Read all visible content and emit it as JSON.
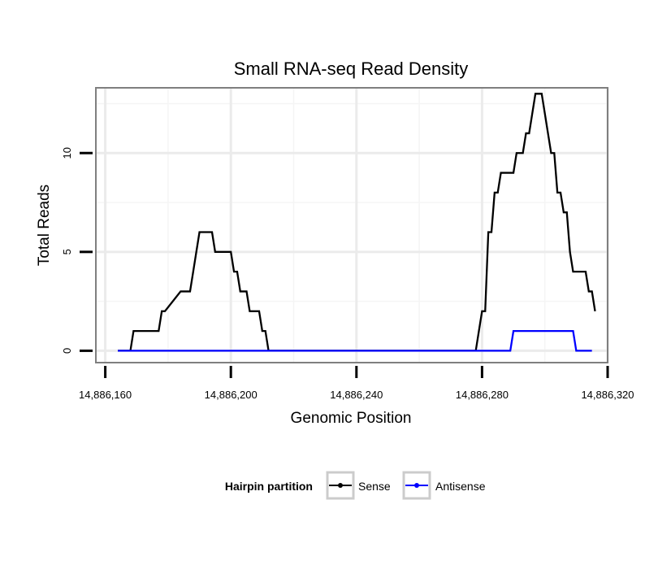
{
  "chart_data": {
    "type": "line",
    "title": "Small RNA-seq Read Density",
    "xlabel": "Genomic Position",
    "ylabel": "Total Reads",
    "xlim": [
      14886157,
      14886320
    ],
    "ylim": [
      -0.6,
      13.3
    ],
    "x_ticks": [
      14886160,
      14886200,
      14886240,
      14886280,
      14886320
    ],
    "x_tick_labels": [
      "14,886,160",
      "14,886,200",
      "14,886,240",
      "14,886,280",
      "14,886,320"
    ],
    "y_ticks": [
      0,
      5,
      10
    ],
    "y_tick_labels": [
      "0",
      "5",
      "10"
    ],
    "y_minor_gridlines": [
      2.5,
      7.5,
      12.5
    ],
    "x_minor_gridlines": [
      14886180,
      14886220,
      14886260,
      14886300
    ],
    "grid": true,
    "legend": {
      "title": "Hairpin partition",
      "position": "bottom",
      "entries": [
        {
          "label": "Sense",
          "color": "#000000"
        },
        {
          "label": "Antisense",
          "color": "#0000ff"
        }
      ]
    },
    "series": [
      {
        "name": "Sense",
        "color": "#000000",
        "x": [
          14886164,
          14886167,
          14886168,
          14886169,
          14886176,
          14886177,
          14886178,
          14886179,
          14886184,
          14886185,
          14886186,
          14886187,
          14886188,
          14886189,
          14886190,
          14886193,
          14886194,
          14886195,
          14886196,
          14886197,
          14886198,
          14886199,
          14886200,
          14886201,
          14886202,
          14886203,
          14886204,
          14886205,
          14886206,
          14886207,
          14886208,
          14886209,
          14886210,
          14886211,
          14886212,
          14886220,
          14886230,
          14886240,
          14886250,
          14886260,
          14886270,
          14886278,
          14886279,
          14886280,
          14886281,
          14886282,
          14886283,
          14886284,
          14886285,
          14886286,
          14886287,
          14886288,
          14886289,
          14886290,
          14886291,
          14886292,
          14886293,
          14886294,
          14886295,
          14886296,
          14886297,
          14886298,
          14886299,
          14886300,
          14886301,
          14886302,
          14886303,
          14886304,
          14886305,
          14886306,
          14886307,
          14886308,
          14886309,
          14886310,
          14886311,
          14886312,
          14886313,
          14886314,
          14886315,
          14886316
        ],
        "values": [
          0,
          0,
          0,
          1,
          1,
          1,
          2,
          2,
          3,
          3,
          3,
          3,
          4,
          5,
          6,
          6,
          6,
          5,
          5,
          5,
          5,
          5,
          5,
          4,
          4,
          3,
          3,
          3,
          2,
          2,
          2,
          2,
          1,
          1,
          0,
          0,
          0,
          0,
          0,
          0,
          0,
          0,
          1,
          2,
          2,
          6,
          6,
          8,
          8,
          9,
          9,
          9,
          9,
          9,
          10,
          10,
          10,
          11,
          11,
          12,
          13,
          13,
          13,
          12,
          11,
          10,
          10,
          8,
          8,
          7,
          7,
          5,
          4,
          4,
          4,
          4,
          4,
          3,
          3,
          2
        ]
      },
      {
        "name": "Antisense",
        "color": "#0000ff",
        "x": [
          14886164,
          14886200,
          14886250,
          14886288,
          14886289,
          14886290,
          14886300,
          14886308,
          14886309,
          14886310,
          14886315
        ],
        "values": [
          0,
          0,
          0,
          0,
          0,
          1,
          1,
          1,
          1,
          0,
          0
        ]
      }
    ]
  }
}
